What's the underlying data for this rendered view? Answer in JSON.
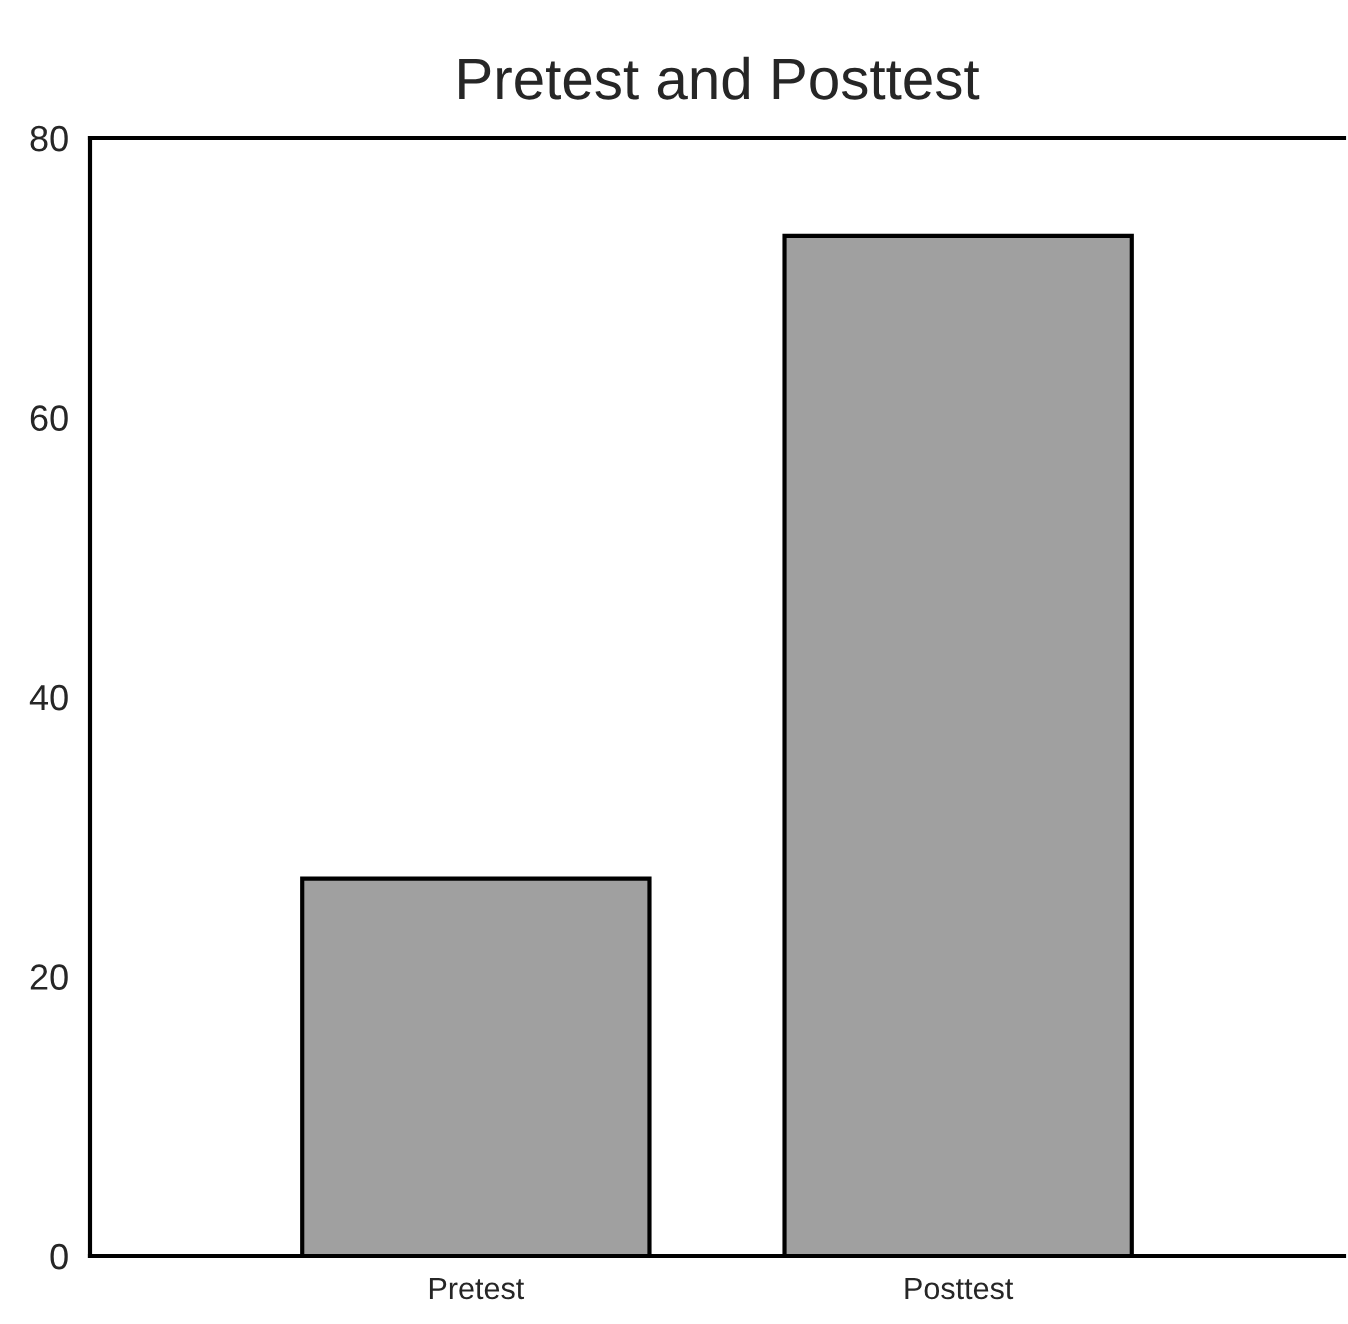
{
  "chart_data": {
    "type": "bar",
    "title": "Pretest and Posttest",
    "categories": [
      "Pretest",
      "Posttest"
    ],
    "values": [
      27,
      73
    ],
    "color": "#a0a0a0",
    "ylim": [
      0,
      80
    ],
    "yticks": [
      0,
      20,
      40,
      60,
      80
    ],
    "grid": false
  }
}
